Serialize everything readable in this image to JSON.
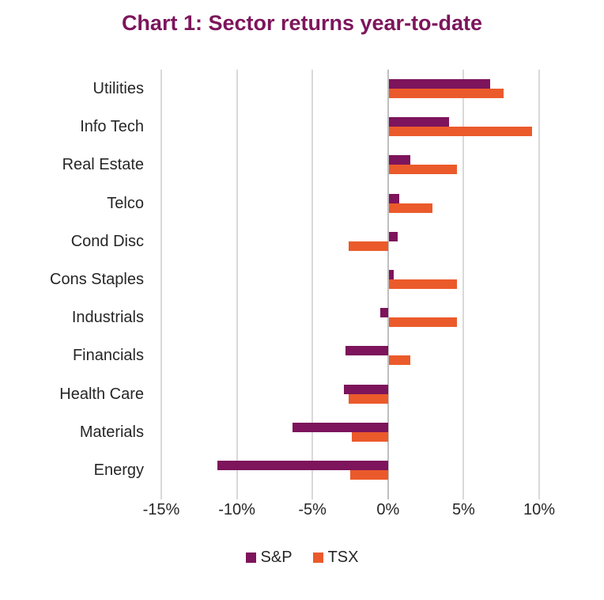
{
  "title": "Chart 1: Sector returns year-to-date",
  "colors": {
    "sp": "#7D145C",
    "tsx": "#EB5A2B",
    "title": "#7D155C",
    "text": "#262626",
    "gridline": "#D9D9D9",
    "zero_line": "#BFBFBF",
    "background": "#FFFFFF"
  },
  "legend": {
    "sp_label": "S&P",
    "tsx_label": "TSX"
  },
  "chart_data": {
    "type": "bar",
    "orientation": "horizontal",
    "title": "Chart 1: Sector returns year-to-date",
    "categories": [
      "Utilities",
      "Info Tech",
      "Real Estate",
      "Telco",
      "Cond Disc",
      "Cons Staples",
      "Industrials",
      "Financials",
      "Health Care",
      "Materials",
      "Energy"
    ],
    "series": [
      {
        "name": "S&P",
        "color": "#7D145C",
        "values": [
          6.7,
          4.0,
          1.4,
          0.7,
          0.6,
          0.3,
          -0.5,
          -2.8,
          -2.9,
          -6.3,
          -11.3
        ]
      },
      {
        "name": "TSX",
        "color": "#EB5A2B",
        "values": [
          7.6,
          9.5,
          4.5,
          2.9,
          -2.6,
          4.5,
          4.5,
          1.4,
          -2.6,
          -2.4,
          -2.5
        ]
      }
    ],
    "unit": "%",
    "xlim": [
      -15,
      10
    ],
    "x_ticks": [
      -15,
      -10,
      -5,
      0,
      5,
      10
    ],
    "x_tick_labels": [
      "-15%",
      "-10%",
      "-5%",
      "0%",
      "5%",
      "10%"
    ],
    "ylabel": "",
    "xlabel": "",
    "grid": true,
    "legend_position": "bottom"
  }
}
